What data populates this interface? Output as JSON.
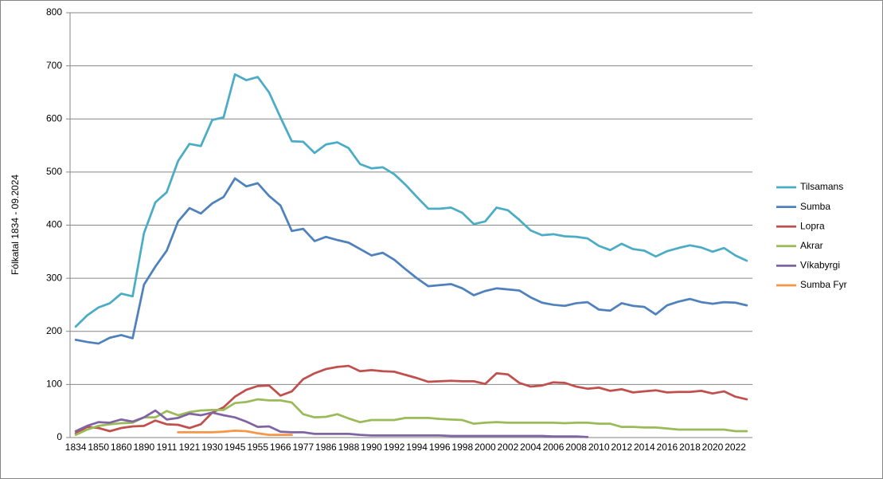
{
  "chart_data": {
    "type": "line",
    "y_label": "Fólkatal 1834 - 09.2024",
    "categories": [
      "1834",
      null,
      "1850",
      null,
      "1860",
      null,
      "1890",
      null,
      "1911",
      null,
      "1921",
      null,
      "1930",
      null,
      "1945",
      null,
      "1955",
      null,
      "1966",
      null,
      "1977",
      null,
      "1986",
      null,
      "1988",
      null,
      "1990",
      null,
      "1992",
      null,
      "1994",
      null,
      "1996",
      null,
      "1998",
      null,
      "2000",
      null,
      "2002",
      null,
      "2004",
      null,
      "2006",
      null,
      "2008",
      null,
      "2010",
      null,
      "2012",
      null,
      "2014",
      null,
      "2016",
      null,
      "2018",
      null,
      "2020",
      null,
      "2022",
      null
    ],
    "series": [
      {
        "name": "Tilsamans",
        "color": "#4bacc6",
        "values": [
          209,
          230,
          245,
          253,
          271,
          266,
          385,
          443,
          462,
          521,
          553,
          549,
          598,
          603,
          684,
          673,
          679,
          650,
          603,
          558,
          557,
          536,
          552,
          556,
          545,
          515,
          507,
          509,
          496,
          476,
          453,
          431,
          431,
          433,
          423,
          402,
          407,
          433,
          428,
          410,
          390,
          381,
          383,
          379,
          378,
          375,
          361,
          353,
          365,
          355,
          352,
          341,
          351,
          357,
          362,
          358,
          350,
          357,
          343,
          333
        ]
      },
      {
        "name": "Sumba",
        "color": "#4f81bd",
        "values": [
          184,
          180,
          177,
          188,
          193,
          187,
          288,
          322,
          352,
          407,
          432,
          422,
          441,
          453,
          488,
          473,
          479,
          455,
          437,
          389,
          393,
          370,
          378,
          372,
          367,
          355,
          343,
          348,
          335,
          317,
          300,
          285,
          287,
          289,
          281,
          268,
          276,
          281,
          279,
          277,
          264,
          254,
          250,
          248,
          253,
          255,
          241,
          239,
          253,
          248,
          246,
          232,
          249,
          256,
          261,
          255,
          252,
          255,
          254,
          249
        ]
      },
      {
        "name": "Lopra",
        "color": "#c0504d",
        "values": [
          8,
          20,
          18,
          12,
          18,
          21,
          22,
          32,
          25,
          24,
          18,
          25,
          47,
          57,
          77,
          90,
          97,
          98,
          79,
          87,
          110,
          121,
          129,
          133,
          135,
          125,
          127,
          125,
          124,
          118,
          112,
          105,
          106,
          107,
          106,
          106,
          101,
          121,
          119,
          103,
          96,
          98,
          104,
          103,
          96,
          92,
          94,
          88,
          91,
          85,
          87,
          89,
          85,
          86,
          86,
          88,
          83,
          87,
          77,
          72
        ]
      },
      {
        "name": "Akrar",
        "color": "#9bbb59",
        "values": [
          5,
          15,
          22,
          25,
          27,
          28,
          38,
          38,
          50,
          42,
          48,
          51,
          52,
          52,
          65,
          67,
          72,
          70,
          70,
          66,
          44,
          38,
          39,
          44,
          36,
          29,
          33,
          33,
          33,
          37,
          37,
          37,
          35,
          34,
          33,
          26,
          28,
          29,
          28,
          28,
          28,
          28,
          28,
          27,
          28,
          28,
          26,
          26,
          20,
          20,
          19,
          19,
          17,
          15,
          15,
          15,
          15,
          15,
          12,
          12
        ]
      },
      {
        "name": "Víkabyrgi",
        "color": "#8064a2",
        "values": [
          12,
          22,
          29,
          28,
          34,
          30,
          38,
          51,
          34,
          37,
          45,
          42,
          47,
          42,
          38,
          30,
          20,
          21,
          11,
          10,
          10,
          7,
          7,
          7,
          7,
          5,
          4,
          4,
          4,
          4,
          4,
          4,
          4,
          3,
          3,
          3,
          3,
          3,
          3,
          3,
          3,
          3,
          2,
          2,
          2,
          1,
          null,
          null,
          null,
          null,
          null,
          null,
          null,
          null,
          null,
          null,
          null,
          null,
          null,
          null
        ]
      },
      {
        "name": "Sumba Fyr",
        "color": "#f79646",
        "values": [
          null,
          null,
          null,
          null,
          null,
          null,
          null,
          null,
          null,
          10,
          10,
          10,
          10,
          11,
          13,
          12,
          8,
          5,
          5,
          5,
          null,
          null,
          null,
          null,
          null,
          null,
          null,
          null,
          null,
          null,
          null,
          null,
          null,
          null,
          null,
          null,
          null,
          null,
          null,
          null,
          null,
          null,
          null,
          null,
          null,
          null,
          null,
          null,
          null,
          null,
          null,
          null,
          null,
          null,
          null,
          null,
          null,
          null,
          null,
          null
        ]
      }
    ],
    "ylim": [
      0,
      800
    ],
    "yticks": [
      0,
      100,
      200,
      300,
      400,
      500,
      600,
      700,
      800
    ],
    "grid": true,
    "legend": "right"
  }
}
